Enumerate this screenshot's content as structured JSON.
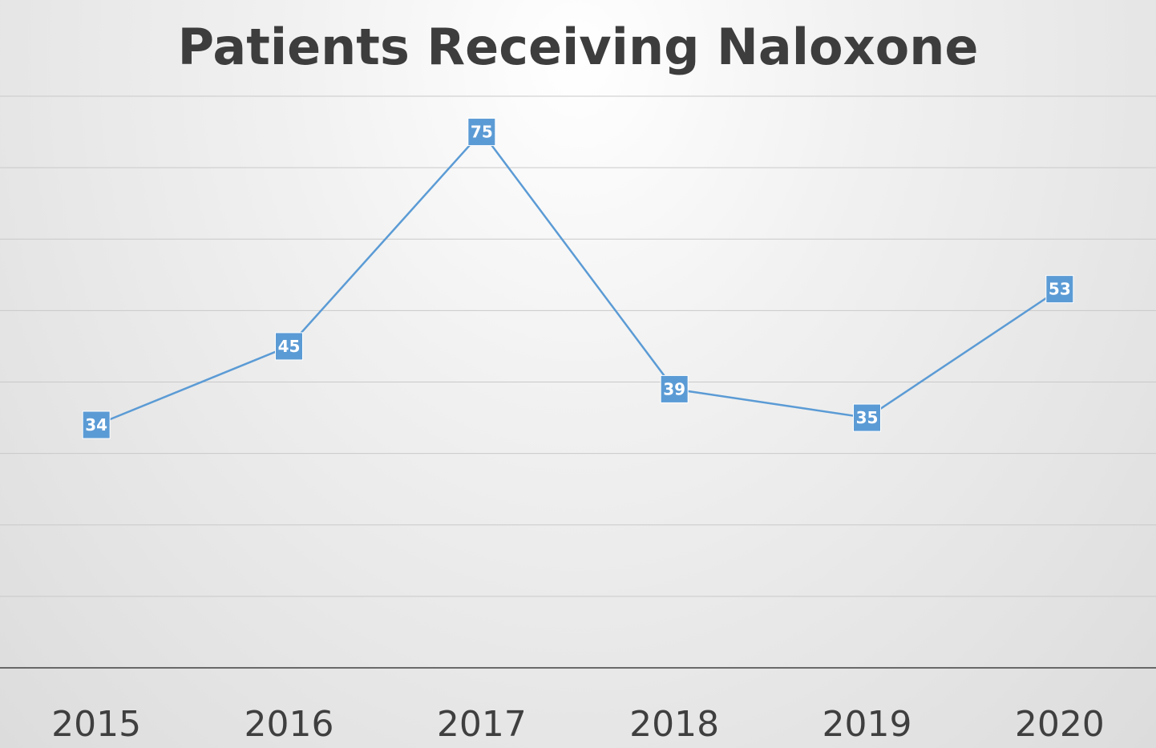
{
  "chart_data": {
    "type": "line",
    "title": "Patients Receiving Naloxone",
    "xlabel": "",
    "ylabel": "",
    "categories": [
      "2015",
      "2016",
      "2017",
      "2018",
      "2019",
      "2020"
    ],
    "series": [
      {
        "values": [
          34,
          45,
          75,
          39,
          35,
          53
        ],
        "color": "#5b9bd5"
      }
    ],
    "ylim": [
      0,
      80
    ],
    "grid": true,
    "data_labels": true,
    "legend": "none"
  }
}
